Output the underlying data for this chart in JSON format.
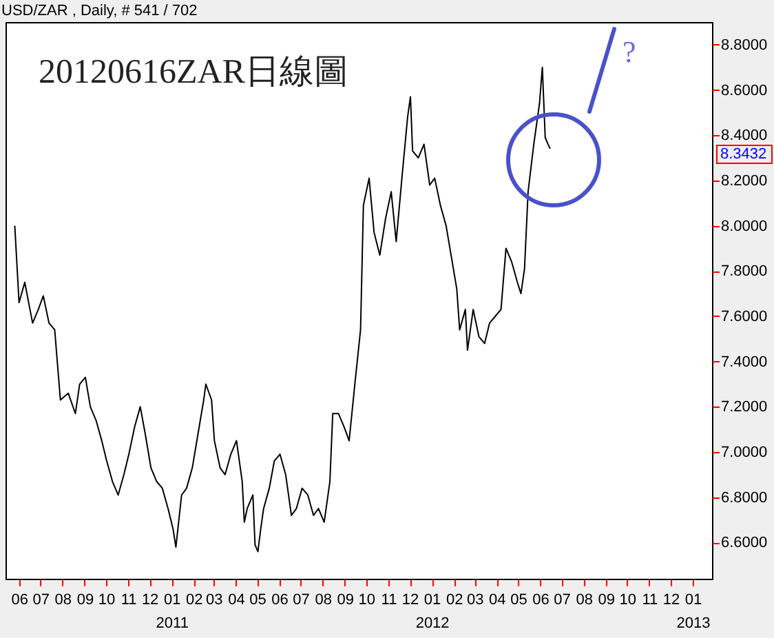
{
  "chart_data": {
    "type": "line",
    "title": "20120616ZAR日線圖",
    "subtitle": "USD/ZAR , Daily, # 541 / 702",
    "annotations": [
      "?",
      "8.3432"
    ],
    "xlim": [
      "2010-05-13",
      "2013-01-28"
    ],
    "ylim": [
      6.44,
      8.9
    ],
    "xticks": [
      {
        "value": "2010-06",
        "label": "06"
      },
      {
        "value": "2010-07",
        "label": "07"
      },
      {
        "value": "2010-08",
        "label": "08"
      },
      {
        "value": "2010-09",
        "label": "09"
      },
      {
        "value": "2010-10",
        "label": "10"
      },
      {
        "value": "2010-11",
        "label": "11"
      },
      {
        "value": "2010-12",
        "label": "12"
      },
      {
        "value": "2011-01",
        "label": "01\n2011"
      },
      {
        "value": "2011-02",
        "label": "02"
      },
      {
        "value": "2011-03",
        "label": "03"
      },
      {
        "value": "2011-04",
        "label": "04"
      },
      {
        "value": "2011-05",
        "label": "05"
      },
      {
        "value": "2011-06",
        "label": "06"
      },
      {
        "value": "2011-07",
        "label": "07"
      },
      {
        "value": "2011-08",
        "label": "08"
      },
      {
        "value": "2011-09",
        "label": "09"
      },
      {
        "value": "2011-10",
        "label": "10"
      },
      {
        "value": "2011-11",
        "label": "11"
      },
      {
        "value": "2011-12",
        "label": "12"
      },
      {
        "value": "2012-01",
        "label": "01\n2012"
      },
      {
        "value": "2012-02",
        "label": "02"
      },
      {
        "value": "2012-03",
        "label": "03"
      },
      {
        "value": "2012-04",
        "label": "04"
      },
      {
        "value": "2012-05",
        "label": "05"
      },
      {
        "value": "2012-06",
        "label": "06"
      },
      {
        "value": "2012-07",
        "label": "07"
      },
      {
        "value": "2012-08",
        "label": "08"
      },
      {
        "value": "2012-09",
        "label": "09"
      },
      {
        "value": "2012-10",
        "label": "10"
      },
      {
        "value": "2012-11",
        "label": "11"
      },
      {
        "value": "2012-12",
        "label": "12"
      },
      {
        "value": "2013-01",
        "label": "01\n2013"
      }
    ],
    "yticks": [
      {
        "value": 6.6,
        "label": "6.6000"
      },
      {
        "value": 6.8,
        "label": "6.8000"
      },
      {
        "value": 7,
        "label": "7.0000"
      },
      {
        "value": 7.2,
        "label": "7.2000"
      },
      {
        "value": 7.4,
        "label": "7.4000"
      },
      {
        "value": 7.6,
        "label": "7.6000"
      },
      {
        "value": 7.8,
        "label": "7.8000"
      },
      {
        "value": 8,
        "label": "8.0000"
      },
      {
        "value": 8.2,
        "label": "8.2000"
      },
      {
        "value": 8.4,
        "label": "8.4000"
      },
      {
        "value": 8.6,
        "label": "8.6000"
      },
      {
        "value": 8.8,
        "label": "8.8000"
      }
    ],
    "x": [
      "2010-05-26",
      "2010-06-01",
      "2010-06-09",
      "2010-06-20",
      "2010-06-28",
      "2010-07-05",
      "2010-07-13",
      "2010-07-21",
      "2010-07-29",
      "2010-08-09",
      "2010-08-19",
      "2010-08-25",
      "2010-09-02",
      "2010-09-09",
      "2010-09-17",
      "2010-09-25",
      "2010-10-02",
      "2010-10-10",
      "2010-10-18",
      "2010-10-26",
      "2010-11-02",
      "2010-11-10",
      "2010-11-18",
      "2010-11-25",
      "2010-12-03",
      "2010-12-11",
      "2010-12-19",
      "2010-12-27",
      "2011-01-03",
      "2011-01-07",
      "2011-01-15",
      "2011-01-22",
      "2011-01-30",
      "2011-02-07",
      "2011-02-15",
      "2011-02-18",
      "2011-02-26",
      "2011-03-02",
      "2011-03-10",
      "2011-03-17",
      "2011-03-25",
      "2011-04-02",
      "2011-04-10",
      "2011-04-13",
      "2011-04-17",
      "2011-04-25",
      "2011-04-28",
      "2011-05-02",
      "2011-05-06",
      "2011-05-10",
      "2011-05-18",
      "2011-05-25",
      "2011-06-02",
      "2011-06-10",
      "2011-06-18",
      "2011-06-25",
      "2011-07-03",
      "2011-07-11",
      "2011-07-19",
      "2011-07-26",
      "2011-08-03",
      "2011-08-11",
      "2011-08-15",
      "2011-08-23",
      "2011-08-31",
      "2011-09-07",
      "2011-09-15",
      "2011-09-23",
      "2011-09-27",
      "2011-10-05",
      "2011-10-12",
      "2011-10-20",
      "2011-10-28",
      "2011-11-05",
      "2011-11-12",
      "2011-11-20",
      "2011-11-28",
      "2011-12-02",
      "2011-12-05",
      "2011-12-13",
      "2011-12-21",
      "2011-12-29",
      "2012-01-05",
      "2012-01-13",
      "2012-01-21",
      "2012-01-28",
      "2012-02-05",
      "2012-02-09",
      "2012-02-17",
      "2012-02-20",
      "2012-02-28",
      "2012-03-07",
      "2012-03-15",
      "2012-03-22",
      "2012-03-30",
      "2012-04-07",
      "2012-04-14",
      "2012-04-22",
      "2012-04-30",
      "2012-05-05",
      "2012-05-10",
      "2012-05-15",
      "2012-05-23",
      "2012-05-31",
      "2012-06-04",
      "2012-06-08",
      "2012-06-12",
      "2012-06-15"
    ],
    "series": [
      {
        "color": "#000000",
        "values": [
          8.0,
          7.66,
          7.75,
          7.57,
          7.63,
          7.69,
          7.57,
          7.54,
          7.23,
          7.26,
          7.17,
          7.3,
          7.33,
          7.2,
          7.14,
          7.05,
          6.96,
          6.87,
          6.81,
          6.9,
          6.99,
          7.11,
          7.2,
          7.08,
          6.93,
          6.87,
          6.84,
          6.75,
          6.66,
          6.58,
          6.81,
          6.84,
          6.93,
          7.08,
          7.23,
          7.3,
          7.23,
          7.05,
          6.93,
          6.9,
          6.99,
          7.05,
          6.87,
          6.69,
          6.75,
          6.81,
          6.59,
          6.56,
          6.66,
          6.75,
          6.84,
          6.96,
          6.99,
          6.9,
          6.72,
          6.75,
          6.84,
          6.81,
          6.72,
          6.75,
          6.69,
          6.87,
          7.17,
          7.17,
          7.11,
          7.05,
          7.3,
          7.54,
          8.09,
          8.21,
          7.97,
          7.87,
          8.03,
          8.15,
          7.93,
          8.21,
          8.48,
          8.57,
          8.33,
          8.3,
          8.36,
          8.18,
          8.21,
          8.09,
          8.0,
          7.87,
          7.72,
          7.54,
          7.63,
          7.45,
          7.63,
          7.51,
          7.48,
          7.57,
          7.6,
          7.63,
          7.9,
          7.84,
          7.75,
          7.7,
          7.81,
          8.15,
          8.36,
          8.54,
          8.7,
          8.39,
          8.36,
          8.34
        ]
      }
    ]
  }
}
